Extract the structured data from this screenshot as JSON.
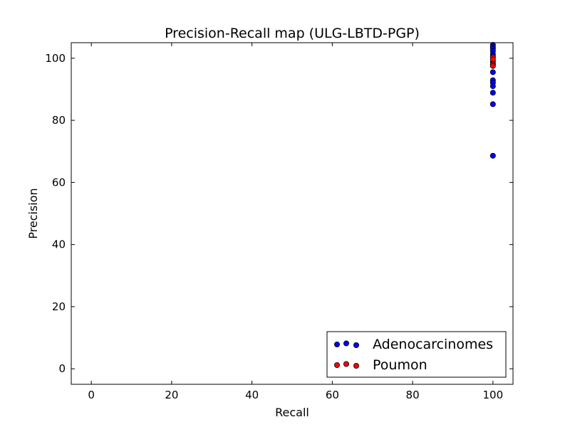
{
  "chart_data": {
    "type": "scatter",
    "title": "Precision-Recall map (ULG-LBTD-PGP)",
    "xlabel": "Recall",
    "ylabel": "Precision",
    "xlim": [
      -5,
      105
    ],
    "ylim": [
      -5,
      105
    ],
    "xticks": [
      0,
      20,
      40,
      60,
      80,
      100
    ],
    "yticks": [
      0,
      20,
      40,
      60,
      80,
      100
    ],
    "grid": false,
    "legend_position": "lower-right",
    "series": [
      {
        "name": "Adenocarcinomes",
        "color": "#0000ff",
        "points": [
          [
            100,
            104.3
          ],
          [
            100,
            103.7
          ],
          [
            100,
            103.1
          ],
          [
            100,
            102.3
          ],
          [
            100,
            101.3
          ],
          [
            100,
            100.7
          ],
          [
            100,
            99.0
          ],
          [
            100,
            98.3
          ],
          [
            100,
            95.5
          ],
          [
            100,
            92.9
          ],
          [
            100,
            92.1
          ],
          [
            100,
            91.0
          ],
          [
            100,
            88.9
          ],
          [
            100,
            85.2
          ],
          [
            100,
            68.6
          ]
        ]
      },
      {
        "name": "Poumon",
        "color": "#ff0000",
        "points": [
          [
            100,
            100.3
          ],
          [
            100,
            99.6
          ],
          [
            100,
            98.0
          ],
          [
            100,
            97.5
          ]
        ]
      }
    ]
  }
}
